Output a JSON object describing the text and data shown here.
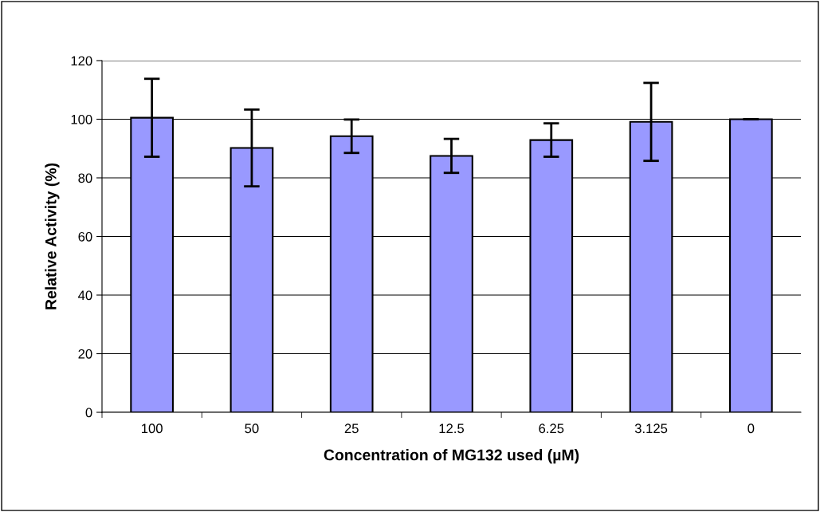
{
  "chart_data": {
    "type": "bar",
    "xlabel": "Concentration of MG132 used (µM)",
    "ylabel": "Relative Activity (%)",
    "categories": [
      "100",
      "50",
      "25",
      "12.5",
      "6.25",
      "3.125",
      "0"
    ],
    "values": [
      100.5,
      90.2,
      94.2,
      87.5,
      92.9,
      99.1,
      100
    ],
    "errors": [
      13.3,
      13.1,
      5.7,
      5.8,
      5.7,
      13.3,
      0
    ],
    "color": "#9999ff",
    "ylim": [
      0,
      120
    ],
    "yticks": [
      0,
      20,
      40,
      60,
      80,
      100,
      120
    ],
    "grid": "y"
  }
}
